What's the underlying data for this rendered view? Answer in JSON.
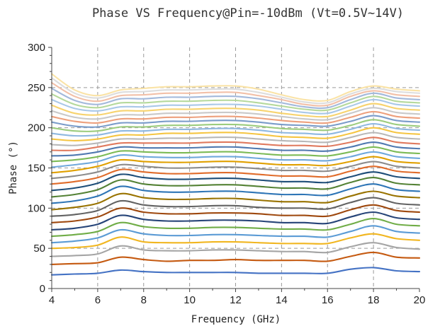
{
  "chart_data": {
    "type": "line",
    "title": "Phase VS Frequency@Pin=-10dBm (Vt=0.5V~14V)",
    "xlabel": "Frequency (GHz)",
    "ylabel": "Phase (°)",
    "xlim": [
      4,
      20
    ],
    "ylim": [
      0,
      300
    ],
    "x_ticks": [
      "4",
      "6",
      "8",
      "10",
      "12",
      "14",
      "16",
      "18",
      "20"
    ],
    "y_ticks": [
      "0",
      "50",
      "100",
      "150",
      "200",
      "250",
      "300"
    ],
    "grid": true,
    "x": [
      4,
      5,
      6,
      7,
      8,
      9,
      10,
      11,
      12,
      13,
      14,
      15,
      16,
      17,
      18,
      19,
      20
    ],
    "series": [
      {
        "color": "#4472c4",
        "values": [
          17,
          18,
          19,
          23,
          21,
          20,
          20,
          20,
          20,
          19,
          19,
          19,
          19,
          24,
          26,
          22,
          21
        ]
      },
      {
        "color": "#c55a11",
        "values": [
          30,
          31,
          32,
          39,
          36,
          34,
          35,
          35,
          36,
          35,
          35,
          35,
          34,
          40,
          45,
          39,
          38
        ]
      },
      {
        "color": "#a5a5a5",
        "values": [
          40,
          41,
          43,
          53,
          48,
          47,
          47,
          48,
          48,
          47,
          46,
          46,
          45,
          52,
          57,
          51,
          49
        ]
      },
      {
        "color": "#f1b620",
        "values": [
          50,
          51,
          54,
          64,
          58,
          57,
          57,
          58,
          58,
          57,
          56,
          56,
          56,
          63,
          68,
          62,
          60
        ]
      },
      {
        "color": "#5b9bd5",
        "values": [
          57,
          59,
          63,
          73,
          68,
          66,
          66,
          67,
          67,
          66,
          65,
          65,
          64,
          71,
          78,
          71,
          69
        ]
      },
      {
        "color": "#70ad47",
        "values": [
          65,
          67,
          71,
          82,
          77,
          75,
          75,
          76,
          76,
          75,
          74,
          74,
          73,
          80,
          87,
          80,
          78
        ]
      },
      {
        "color": "#264478",
        "values": [
          73,
          75,
          80,
          91,
          86,
          84,
          84,
          85,
          85,
          84,
          82,
          82,
          81,
          89,
          95,
          88,
          86
        ]
      },
      {
        "color": "#9e480e",
        "values": [
          82,
          84,
          89,
          100,
          95,
          93,
          93,
          94,
          94,
          93,
          91,
          91,
          90,
          98,
          104,
          97,
          95
        ]
      },
      {
        "color": "#636363",
        "values": [
          90,
          92,
          97,
          109,
          104,
          102,
          102,
          103,
          103,
          101,
          100,
          100,
          99,
          107,
          113,
          106,
          104
        ]
      },
      {
        "color": "#997300",
        "values": [
          98,
          101,
          106,
          118,
          113,
          111,
          111,
          112,
          112,
          110,
          108,
          108,
          107,
          115,
          121,
          115,
          113
        ]
      },
      {
        "color": "#2e75b6",
        "values": [
          106,
          109,
          115,
          127,
          122,
          120,
          120,
          121,
          121,
          119,
          117,
          117,
          116,
          124,
          130,
          123,
          121
        ]
      },
      {
        "color": "#548235",
        "values": [
          114,
          117,
          123,
          135,
          130,
          128,
          128,
          129,
          129,
          127,
          125,
          125,
          124,
          132,
          138,
          131,
          129
        ]
      },
      {
        "color": "#1f4e79",
        "values": [
          122,
          125,
          131,
          142,
          138,
          136,
          136,
          137,
          137,
          135,
          133,
          133,
          132,
          139,
          145,
          139,
          137
        ]
      },
      {
        "color": "#e06c2b",
        "values": [
          130,
          133,
          138,
          148,
          145,
          143,
          143,
          144,
          144,
          142,
          140,
          140,
          139,
          146,
          152,
          146,
          144
        ]
      },
      {
        "color": "#8c8c8c",
        "values": [
          137,
          140,
          145,
          154,
          152,
          150,
          150,
          151,
          151,
          149,
          147,
          147,
          146,
          152,
          158,
          152,
          150
        ]
      },
      {
        "color": "#e0a000",
        "values": [
          144,
          147,
          152,
          160,
          158,
          157,
          157,
          158,
          158,
          156,
          154,
          154,
          153,
          158,
          164,
          158,
          156
        ]
      },
      {
        "color": "#6fa8dc",
        "values": [
          151,
          154,
          158,
          166,
          164,
          163,
          163,
          164,
          164,
          162,
          160,
          160,
          159,
          164,
          170,
          164,
          162
        ]
      },
      {
        "color": "#7dbb57",
        "values": [
          158,
          160,
          164,
          171,
          170,
          169,
          169,
          170,
          170,
          168,
          166,
          166,
          165,
          170,
          176,
          170,
          168
        ]
      },
      {
        "color": "#5079b0",
        "values": [
          165,
          166,
          170,
          176,
          175,
          175,
          175,
          176,
          176,
          174,
          172,
          172,
          171,
          176,
          182,
          176,
          174
        ]
      },
      {
        "color": "#e07a5f",
        "values": [
          172,
          172,
          176,
          181,
          181,
          181,
          181,
          182,
          182,
          180,
          178,
          178,
          177,
          182,
          188,
          182,
          180
        ]
      },
      {
        "color": "#b8b8b8",
        "values": [
          179,
          178,
          181,
          186,
          186,
          187,
          187,
          188,
          188,
          186,
          184,
          183,
          182,
          188,
          194,
          188,
          186
        ]
      },
      {
        "color": "#f5c542",
        "values": [
          186,
          184,
          186,
          191,
          191,
          193,
          193,
          194,
          194,
          192,
          189,
          188,
          187,
          193,
          200,
          194,
          192
        ]
      },
      {
        "color": "#8fb8e0",
        "values": [
          193,
          190,
          191,
          196,
          196,
          198,
          198,
          199,
          199,
          197,
          194,
          193,
          192,
          198,
          205,
          199,
          197
        ]
      },
      {
        "color": "#9ccc7e",
        "values": [
          200,
          196,
          196,
          201,
          201,
          203,
          203,
          204,
          204,
          202,
          199,
          198,
          197,
          203,
          210,
          204,
          202
        ]
      },
      {
        "color": "#7a9cc9",
        "values": [
          207,
          202,
          201,
          206,
          206,
          208,
          208,
          209,
          209,
          207,
          204,
          203,
          202,
          208,
          215,
          209,
          207
        ]
      },
      {
        "color": "#eda07d",
        "values": [
          214,
          208,
          206,
          211,
          211,
          213,
          213,
          214,
          214,
          212,
          209,
          207,
          206,
          213,
          220,
          214,
          212
        ]
      },
      {
        "color": "#c9c9c9",
        "values": [
          221,
          213,
          211,
          216,
          216,
          218,
          218,
          219,
          219,
          217,
          214,
          211,
          210,
          218,
          225,
          219,
          217
        ]
      },
      {
        "color": "#f7d36e",
        "values": [
          228,
          218,
          216,
          221,
          221,
          223,
          223,
          224,
          224,
          222,
          218,
          215,
          214,
          222,
          230,
          224,
          222
        ]
      },
      {
        "color": "#a9c8e8",
        "values": [
          235,
          224,
          221,
          226,
          226,
          228,
          228,
          229,
          229,
          227,
          223,
          219,
          218,
          227,
          235,
          229,
          227
        ]
      },
      {
        "color": "#b5d99c",
        "values": [
          242,
          229,
          225,
          231,
          231,
          233,
          233,
          234,
          234,
          231,
          227,
          223,
          222,
          231,
          239,
          233,
          231
        ]
      },
      {
        "color": "#a3b9db",
        "values": [
          249,
          234,
          229,
          236,
          236,
          238,
          238,
          239,
          239,
          236,
          231,
          226,
          225,
          235,
          243,
          237,
          235
        ]
      },
      {
        "color": "#f2c0a8",
        "values": [
          256,
          239,
          233,
          240,
          241,
          243,
          243,
          244,
          244,
          240,
          235,
          229,
          228,
          239,
          246,
          241,
          239
        ]
      },
      {
        "color": "#dddddd",
        "values": [
          262,
          243,
          237,
          244,
          245,
          247,
          247,
          248,
          248,
          244,
          238,
          232,
          231,
          242,
          249,
          245,
          243
        ]
      },
      {
        "color": "#fae3a6",
        "values": [
          267,
          247,
          240,
          247,
          249,
          251,
          251,
          252,
          252,
          248,
          241,
          235,
          234,
          245,
          252,
          248,
          246
        ]
      }
    ]
  }
}
